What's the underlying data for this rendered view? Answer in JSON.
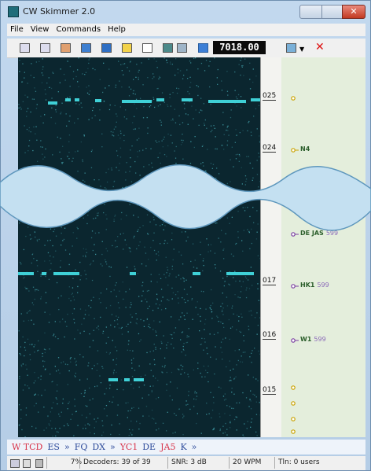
{
  "window": {
    "title": "CW Skimmer 2.0",
    "menu": [
      "File",
      "View",
      "Commands",
      "Help"
    ],
    "frequency": "7018.00",
    "scale_labels": [
      "025",
      "024",
      "017",
      "016",
      "015"
    ],
    "spots": [
      {
        "call": "N4"
      },
      {
        "call": "DE JAS",
        "report": "599"
      },
      {
        "call": "HK1",
        "report": "599"
      },
      {
        "call": "W1",
        "report": "599"
      }
    ],
    "decode": [
      "W TCD",
      "ES",
      "»",
      "FQ",
      "DX",
      "»",
      "YC1",
      "DE",
      "JA5",
      "K",
      "»"
    ],
    "status": [
      "7%",
      "Decoders: 39 of 39",
      "SNR: 3 dB",
      "20 WPM",
      "Tln: 0 users"
    ]
  }
}
